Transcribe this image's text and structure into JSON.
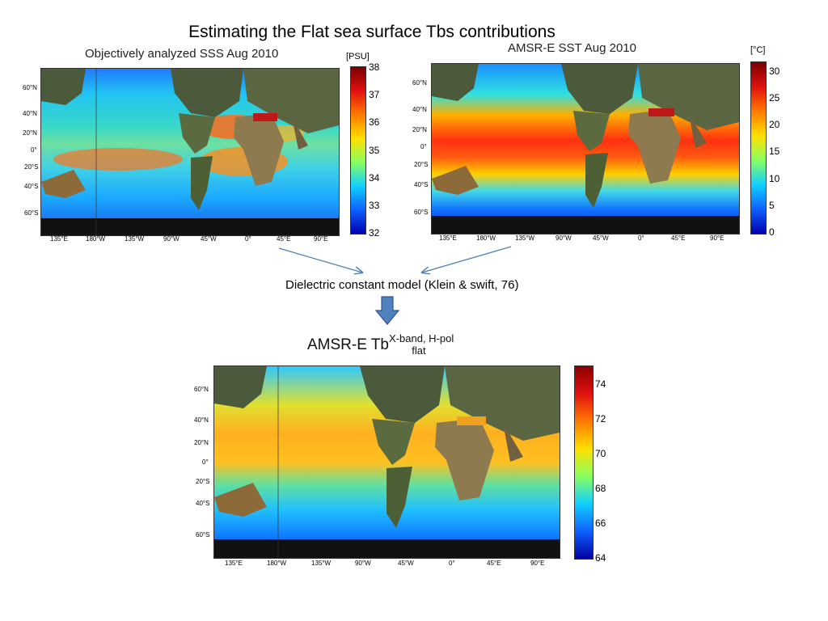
{
  "slide": {
    "title": "Estimating the Flat sea surface Tbs contributions"
  },
  "panels": {
    "sss": {
      "title": "Objectively analyzed SSS Aug 2010",
      "unit": "[PSU]",
      "colorbar_ticks": [
        "38",
        "37",
        "36",
        "35",
        "34",
        "33",
        "32"
      ],
      "lat_ticks": [
        "60°N",
        "40°N",
        "20°N",
        "0°",
        "20°S",
        "40°S",
        "60°S"
      ],
      "lon_ticks": [
        "135°E",
        "180°W",
        "135°W",
        "90°W",
        "45°W",
        "0°",
        "45°E",
        "90°E"
      ]
    },
    "sst": {
      "title": "AMSR-E SST Aug 2010",
      "unit": "[°C]",
      "colorbar_ticks": [
        "30",
        "25",
        "20",
        "15",
        "10",
        "5",
        "0"
      ],
      "lat_ticks": [
        "60°N",
        "40°N",
        "20°N",
        "0°",
        "20°S",
        "40°S",
        "60°S"
      ],
      "lon_ticks": [
        "135°E",
        "180°W",
        "135°W",
        "90°W",
        "45°W",
        "0°",
        "45°E",
        "90°E"
      ]
    },
    "tb": {
      "title_main": "AMSR-E Tb",
      "title_sup": "X-band, H-pol",
      "title_sub": "flat",
      "colorbar_ticks": [
        "74",
        "72",
        "70",
        "68",
        "66",
        "64"
      ],
      "lat_ticks": [
        "60°N",
        "40°N",
        "20°N",
        "0°",
        "20°S",
        "40°S",
        "60°S"
      ],
      "lon_ticks": [
        "135°E",
        "180°W",
        "135°W",
        "90°W",
        "45°W",
        "0°",
        "45°E",
        "90°E"
      ]
    }
  },
  "model_label": "Dielectric constant model (Klein & swift, 76)",
  "colors": {
    "arrow_line": "#4a7ebb",
    "down_arrow": "#4f81bd",
    "land": "#4a5a3a",
    "ice": "#111111"
  }
}
